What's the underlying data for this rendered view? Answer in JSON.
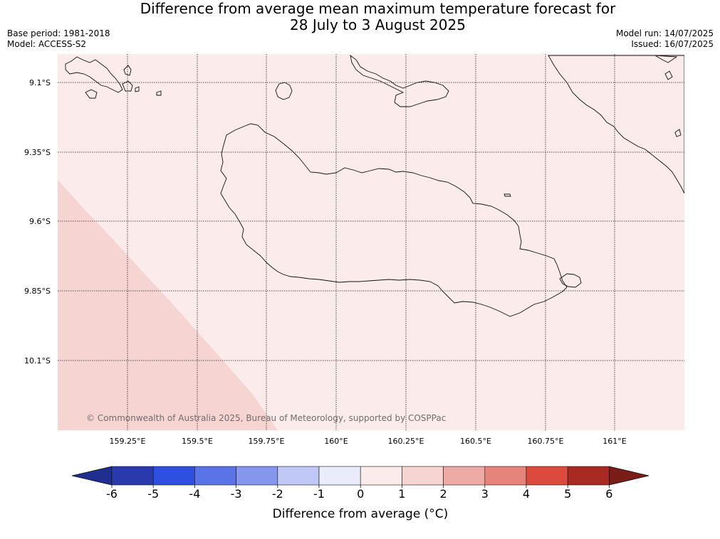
{
  "title_line1": "Difference from average mean maximum temperature forecast for",
  "title_line2": "28 July to 3 August 2025",
  "meta_left": {
    "base_period": "Base period: 1981-2018",
    "model": "Model: ACCESS-S2"
  },
  "meta_right": {
    "model_run": "Model run: 14/07/2025",
    "issued": "Issued: 16/07/2025"
  },
  "map": {
    "lat_labels": [
      "9.1°S",
      "9.35°S",
      "9.6°S",
      "9.85°S",
      "10.1°S"
    ],
    "lon_labels": [
      "159.25°E",
      "159.5°E",
      "159.75°E",
      "160°E",
      "160.25°E",
      "160.5°E",
      "160.75°E",
      "161°E"
    ],
    "copyright": "© Commonwealth of Australia 2025, Bureau of Meteorology, supported by COSPPac",
    "background_color": "#fbebea",
    "region_color": "#f6d4d2"
  },
  "colorbar": {
    "title": "Difference from average (°C)",
    "ticks": [
      "-6",
      "-5",
      "-4",
      "-3",
      "-2",
      "-1",
      "0",
      "1",
      "2",
      "3",
      "4",
      "5",
      "6"
    ],
    "colors": [
      "#1f2e8f",
      "#2a3aad",
      "#2e4fe0",
      "#5a73e6",
      "#8596ec",
      "#c0c8f5",
      "#e9ecfb",
      "#fbebea",
      "#f6d4d2",
      "#eeaba6",
      "#e6847c",
      "#dc4a3e",
      "#a82a23",
      "#7a1c18"
    ]
  }
}
